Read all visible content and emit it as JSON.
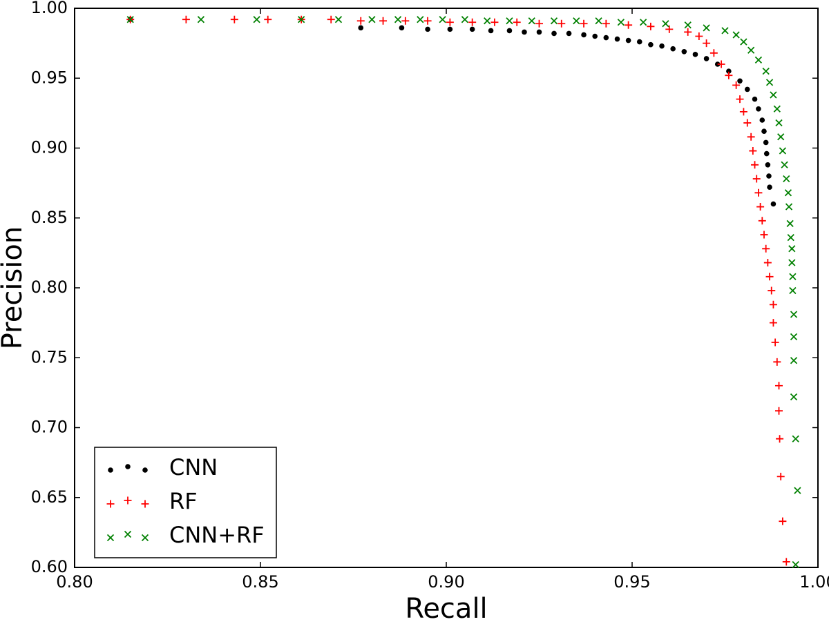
{
  "chart_data": {
    "type": "scatter",
    "xlabel": "Recall",
    "ylabel": "Precision",
    "xlim": [
      0.8,
      1.0
    ],
    "xticks": [
      {
        "value": 0.8,
        "label": "0.80"
      },
      {
        "value": 0.85,
        "label": "0.85"
      },
      {
        "value": 0.9,
        "label": "0.90"
      },
      {
        "value": 0.95,
        "label": "0.95"
      },
      {
        "value": 1.0,
        "label": "1.00"
      }
    ],
    "ylim": [
      0.6,
      1.0
    ],
    "yticks": [
      {
        "value": 0.6,
        "label": "0.60"
      },
      {
        "value": 0.65,
        "label": "0.65"
      },
      {
        "value": 0.7,
        "label": "0.70"
      },
      {
        "value": 0.75,
        "label": "0.75"
      },
      {
        "value": 0.8,
        "label": "0.80"
      },
      {
        "value": 0.85,
        "label": "0.85"
      },
      {
        "value": 0.9,
        "label": "0.90"
      },
      {
        "value": 0.95,
        "label": "0.95"
      },
      {
        "value": 1.0,
        "label": "1.00"
      }
    ],
    "grid": false,
    "legend": "lower left",
    "series": [
      {
        "name": "CNN",
        "color": "#000000",
        "marker": "o",
        "x": [
          0.815,
          0.877,
          0.888,
          0.895,
          0.901,
          0.907,
          0.912,
          0.917,
          0.921,
          0.925,
          0.929,
          0.933,
          0.937,
          0.94,
          0.943,
          0.946,
          0.949,
          0.952,
          0.955,
          0.958,
          0.961,
          0.964,
          0.967,
          0.97,
          0.973,
          0.976,
          0.979,
          0.981,
          0.983,
          0.984,
          0.985,
          0.9855,
          0.986,
          0.9862,
          0.9865,
          0.9868,
          0.987,
          0.988
        ],
        "values": [
          0.992,
          0.986,
          0.986,
          0.985,
          0.985,
          0.985,
          0.984,
          0.984,
          0.983,
          0.983,
          0.982,
          0.982,
          0.981,
          0.98,
          0.979,
          0.978,
          0.977,
          0.976,
          0.974,
          0.973,
          0.971,
          0.969,
          0.967,
          0.964,
          0.96,
          0.955,
          0.948,
          0.942,
          0.935,
          0.928,
          0.92,
          0.912,
          0.904,
          0.896,
          0.888,
          0.88,
          0.872,
          0.86
        ]
      },
      {
        "name": "RF",
        "color": "#ff0000",
        "marker": "+",
        "x": [
          0.815,
          0.83,
          0.843,
          0.852,
          0.861,
          0.869,
          0.877,
          0.883,
          0.889,
          0.895,
          0.901,
          0.907,
          0.913,
          0.919,
          0.925,
          0.931,
          0.937,
          0.943,
          0.949,
          0.955,
          0.96,
          0.965,
          0.968,
          0.97,
          0.972,
          0.974,
          0.976,
          0.978,
          0.979,
          0.98,
          0.981,
          0.982,
          0.9825,
          0.983,
          0.9835,
          0.984,
          0.9845,
          0.985,
          0.9855,
          0.986,
          0.9865,
          0.987,
          0.9875,
          0.988,
          0.988,
          0.9885,
          0.989,
          0.9895,
          0.9895,
          0.9897,
          0.99,
          0.9905,
          0.9915
        ],
        "values": [
          0.992,
          0.992,
          0.992,
          0.992,
          0.992,
          0.992,
          0.991,
          0.991,
          0.991,
          0.991,
          0.99,
          0.99,
          0.99,
          0.99,
          0.989,
          0.989,
          0.989,
          0.989,
          0.988,
          0.987,
          0.985,
          0.983,
          0.98,
          0.975,
          0.968,
          0.96,
          0.952,
          0.945,
          0.935,
          0.926,
          0.918,
          0.908,
          0.898,
          0.888,
          0.878,
          0.868,
          0.858,
          0.848,
          0.838,
          0.828,
          0.818,
          0.808,
          0.798,
          0.788,
          0.775,
          0.761,
          0.747,
          0.73,
          0.712,
          0.692,
          0.665,
          0.633,
          0.604
        ]
      },
      {
        "name": "CNN+RF",
        "color": "#008000",
        "marker": "x",
        "x": [
          0.815,
          0.834,
          0.849,
          0.861,
          0.871,
          0.88,
          0.887,
          0.893,
          0.899,
          0.905,
          0.911,
          0.917,
          0.923,
          0.929,
          0.935,
          0.941,
          0.947,
          0.953,
          0.959,
          0.965,
          0.97,
          0.975,
          0.978,
          0.98,
          0.982,
          0.984,
          0.986,
          0.987,
          0.988,
          0.989,
          0.9895,
          0.99,
          0.9905,
          0.991,
          0.9915,
          0.992,
          0.9922,
          0.9925,
          0.9927,
          0.993,
          0.993,
          0.9932,
          0.9932,
          0.9935,
          0.9935,
          0.9935,
          0.9935,
          0.994,
          0.9945,
          0.994
        ],
        "values": [
          0.992,
          0.992,
          0.992,
          0.992,
          0.992,
          0.992,
          0.992,
          0.992,
          0.992,
          0.992,
          0.991,
          0.991,
          0.991,
          0.991,
          0.991,
          0.991,
          0.99,
          0.99,
          0.989,
          0.988,
          0.986,
          0.984,
          0.981,
          0.976,
          0.97,
          0.963,
          0.955,
          0.947,
          0.938,
          0.928,
          0.918,
          0.908,
          0.898,
          0.888,
          0.878,
          0.868,
          0.858,
          0.846,
          0.836,
          0.828,
          0.818,
          0.808,
          0.798,
          0.781,
          0.765,
          0.748,
          0.722,
          0.692,
          0.655,
          0.602
        ]
      }
    ]
  }
}
